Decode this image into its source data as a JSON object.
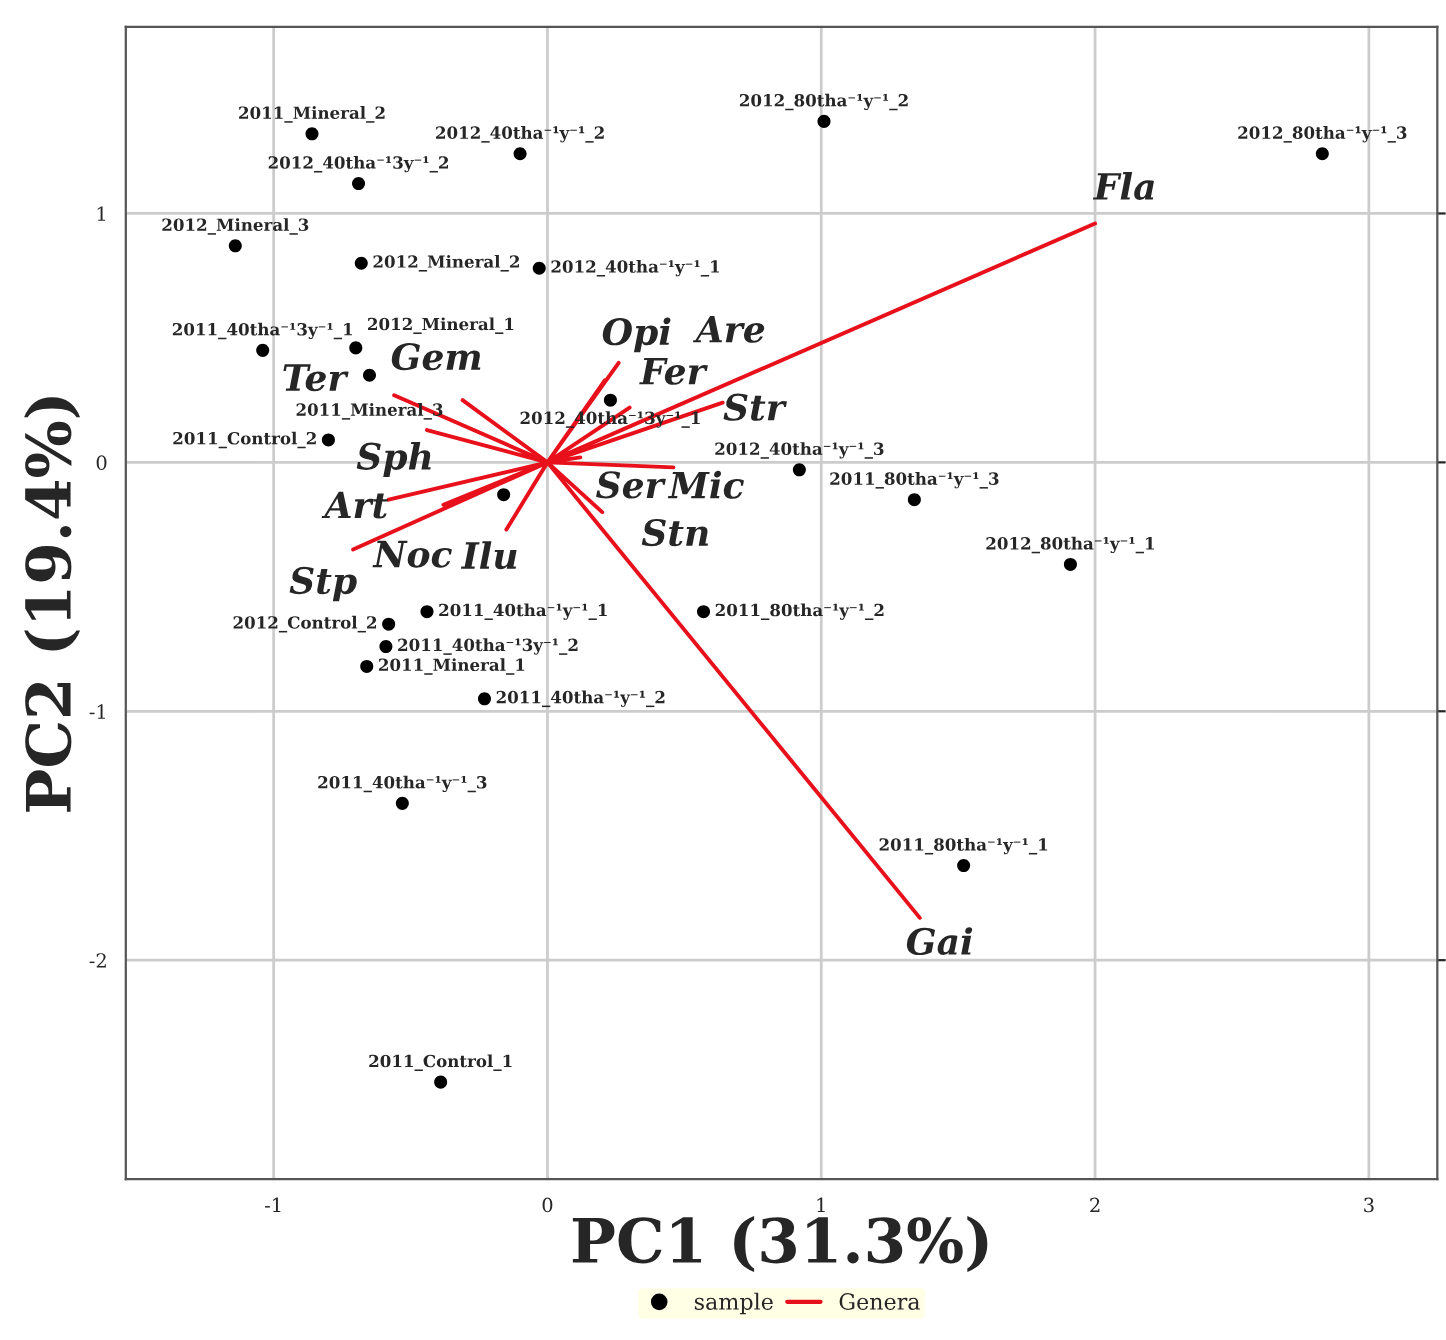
{
  "chart_data": {
    "type": "scatter",
    "xlabel": "PC1 (31.3%)",
    "ylabel": "PC2 (19.4%)",
    "xlim": [
      -1.54,
      3.25
    ],
    "ylim": [
      -2.88,
      1.75
    ],
    "xticks": [
      -1,
      0,
      1,
      2,
      3
    ],
    "yticks": [
      -2,
      -1,
      0,
      1
    ],
    "grid": true,
    "legend": "bottom",
    "series": [
      {
        "name": "sample",
        "color": "#000000",
        "marker": "circle",
        "x": [
          -0.86,
          -0.69,
          -0.1,
          1.01,
          2.83,
          -1.14,
          -0.68,
          -0.03,
          -1.04,
          -0.7,
          -0.65,
          -0.8,
          0.23,
          -0.16,
          -0.44,
          -0.58,
          -0.59,
          -0.66,
          -0.23,
          -0.53,
          -0.39,
          0.57,
          0.92,
          1.34,
          1.91,
          1.52
        ],
        "values": [
          1.32,
          1.12,
          1.24,
          1.37,
          1.24,
          0.87,
          0.8,
          0.78,
          0.45,
          0.46,
          0.35,
          0.09,
          0.25,
          -0.13,
          -0.6,
          -0.65,
          -0.74,
          -0.82,
          -0.95,
          -1.37,
          -2.49,
          -0.6,
          -0.03,
          -0.15,
          -0.41,
          -1.62
        ]
      },
      {
        "name": "Genera",
        "type": "line",
        "color": "#e8101a",
        "marker": "none",
        "line_style": "solid",
        "x": [
          0,
          2.0,
          null,
          0,
          1.36,
          null,
          0,
          0.26,
          null,
          0,
          0.21,
          null,
          0,
          0.3,
          null,
          0,
          0.64,
          null,
          0,
          0.46,
          null,
          0,
          0.12,
          null,
          0,
          0.2,
          null,
          0,
          -0.15,
          null,
          0,
          -0.38,
          null,
          0,
          -0.71,
          null,
          0,
          -0.58,
          null,
          0,
          -0.44,
          null,
          0,
          -0.56,
          null,
          0,
          -0.31
        ],
        "values": [
          0,
          0.96,
          null,
          0,
          -1.83,
          null,
          0,
          0.4,
          null,
          0,
          0.33,
          null,
          0,
          0.22,
          null,
          0,
          0.24,
          null,
          0,
          -0.02,
          null,
          0,
          0.02,
          null,
          0,
          -0.2,
          null,
          0,
          -0.27,
          null,
          0,
          -0.17,
          null,
          0,
          -0.35,
          null,
          0,
          -0.15,
          null,
          0,
          0.13,
          null,
          0,
          0.27,
          null,
          0,
          0.25
        ]
      }
    ],
    "annotations": [
      {
        "text": "2011_Mineral_2",
        "x": -0.86,
        "y": 1.32
      },
      {
        "text": "2012_40tha⁻¹3y⁻¹_2",
        "x": -0.69,
        "y": 1.12
      },
      {
        "text": "2012_40tha⁻¹y⁻¹_2",
        "x": -0.1,
        "y": 1.24
      },
      {
        "text": "2012_80tha⁻¹y⁻¹_2",
        "x": 1.01,
        "y": 1.37
      },
      {
        "text": "2012_80tha⁻¹y⁻¹_3",
        "x": 2.83,
        "y": 1.24
      },
      {
        "text": "2012_Mineral_3",
        "x": -1.14,
        "y": 0.87
      },
      {
        "text": "2012_Mineral_2",
        "x": -0.68,
        "y": 0.8
      },
      {
        "text": "2012_40tha⁻¹y⁻¹_1",
        "x": -0.03,
        "y": 0.78
      },
      {
        "text": "2011_40tha⁻¹3y⁻¹_1",
        "x": -1.04,
        "y": 0.45
      },
      {
        "text": "2012_Mineral_1",
        "x": -0.7,
        "y": 0.46
      },
      {
        "text": "2011_Mineral_3",
        "x": -0.65,
        "y": 0.35
      },
      {
        "text": "2011_Control_2",
        "x": -0.8,
        "y": 0.09
      },
      {
        "text": "2012_40tha⁻¹3y⁻¹_1",
        "x": 0.23,
        "y": 0.25
      },
      {
        "text": "2011_40tha⁻¹y⁻¹_1",
        "x": -0.44,
        "y": -0.6
      },
      {
        "text": "2012_Control_2",
        "x": -0.58,
        "y": -0.65
      },
      {
        "text": "2011_40tha⁻¹3y⁻¹_2",
        "x": -0.59,
        "y": -0.74
      },
      {
        "text": "2011_Mineral_1",
        "x": -0.66,
        "y": -0.82
      },
      {
        "text": "2011_40tha⁻¹y⁻¹_2",
        "x": -0.23,
        "y": -0.95
      },
      {
        "text": "2011_40tha⁻¹y⁻¹_3",
        "x": -0.53,
        "y": -1.37
      },
      {
        "text": "2011_Control_1",
        "x": -0.39,
        "y": -2.49
      },
      {
        "text": "2011_80tha⁻¹y⁻¹_2",
        "x": 0.57,
        "y": -0.6
      },
      {
        "text": "2012_40tha⁻¹y⁻¹_3",
        "x": 0.92,
        "y": -0.03
      },
      {
        "text": "2011_80tha⁻¹y⁻¹_3",
        "x": 1.34,
        "y": -0.15
      },
      {
        "text": "2012_80tha⁻¹y⁻¹_1",
        "x": 1.91,
        "y": -0.41
      },
      {
        "text": "2011_80tha⁻¹y⁻¹_1",
        "x": 1.52,
        "y": -1.62
      },
      {
        "text": "Fla",
        "x": 2.0,
        "y": 0.96
      },
      {
        "text": "Gai",
        "x": 1.36,
        "y": -1.83
      },
      {
        "text": "Opi",
        "x": 0.26,
        "y": 0.4
      },
      {
        "text": "Fer",
        "x": 0.21,
        "y": 0.33
      },
      {
        "text": "Are",
        "x": 0.3,
        "y": 0.22
      },
      {
        "text": "Str",
        "x": 0.64,
        "y": 0.24
      },
      {
        "text": "Mic",
        "x": 0.46,
        "y": -0.02
      },
      {
        "text": "Ser",
        "x": 0.12,
        "y": 0.02
      },
      {
        "text": "Stn",
        "x": 0.2,
        "y": -0.2
      },
      {
        "text": "Ilu",
        "x": -0.15,
        "y": -0.27
      },
      {
        "text": "Noc",
        "x": -0.38,
        "y": -0.17
      },
      {
        "text": "Stp",
        "x": -0.71,
        "y": -0.35
      },
      {
        "text": "Art",
        "x": -0.58,
        "y": -0.15
      },
      {
        "text": "Sph",
        "x": -0.44,
        "y": 0.13
      },
      {
        "text": "Ter",
        "x": -0.56,
        "y": 0.27
      },
      {
        "text": "Gem",
        "x": -0.31,
        "y": 0.25
      }
    ]
  }
}
